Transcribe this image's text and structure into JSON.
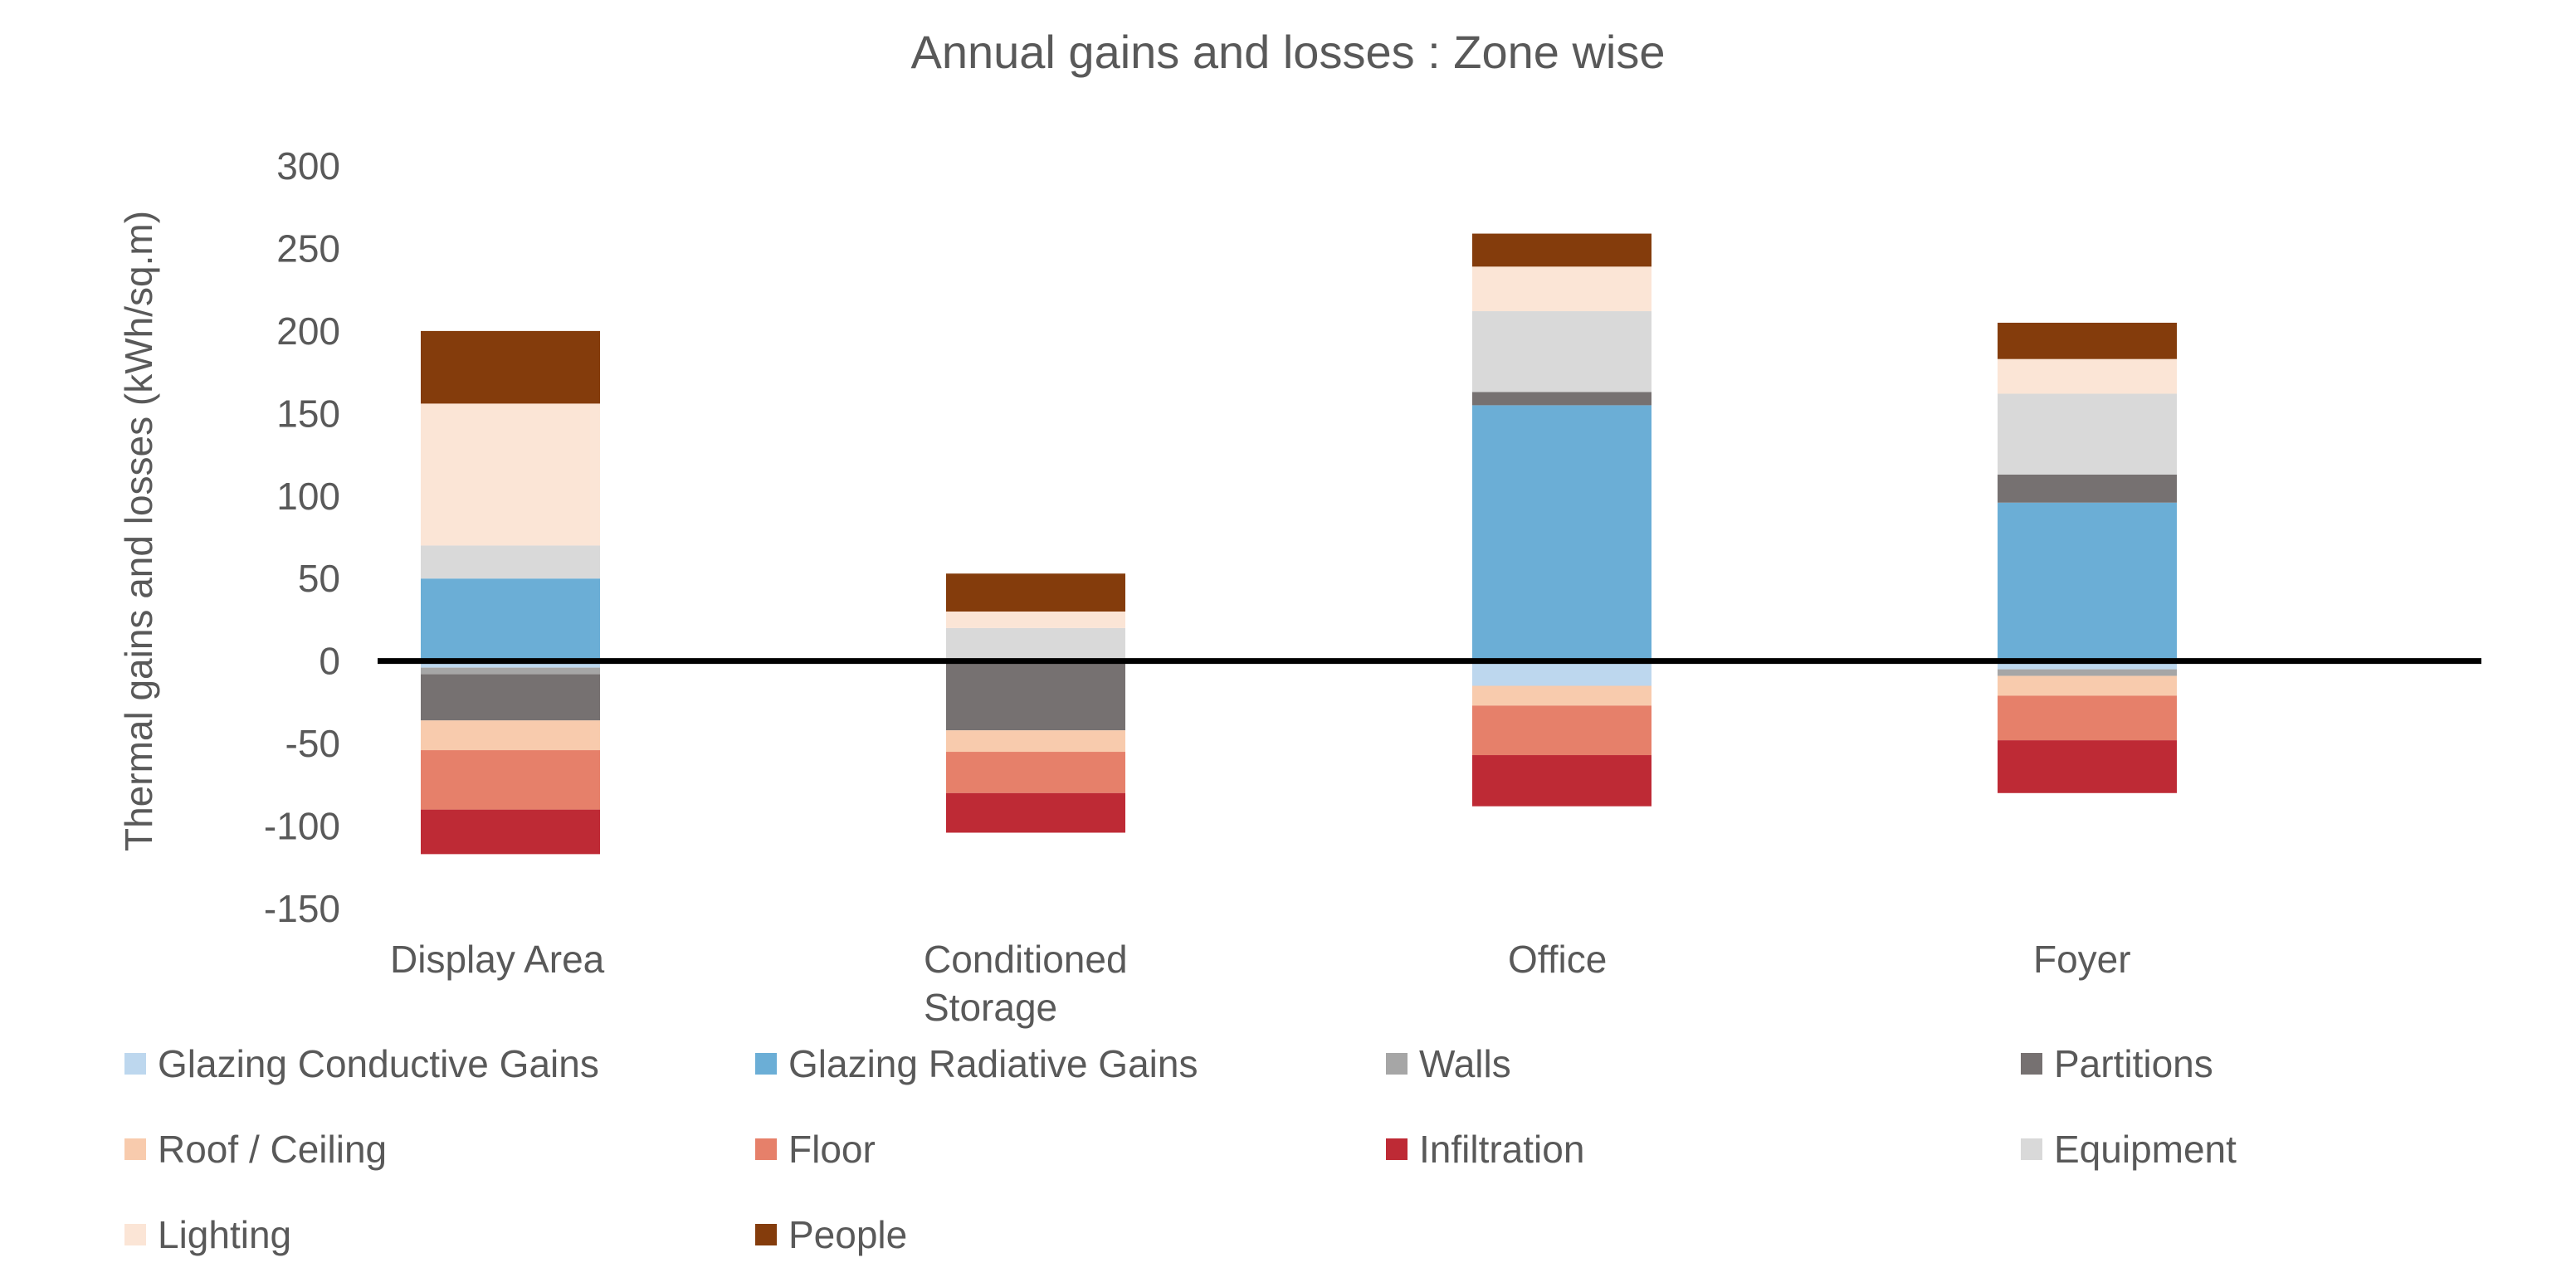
{
  "chart_data": {
    "type": "bar",
    "stacked": true,
    "title": "Annual gains and losses : Zone wise",
    "ylabel": "Thermal gains and losses (kWh/sq.m)",
    "xlabel": "",
    "ylim": [
      -150,
      300
    ],
    "yticks": [
      "300",
      "250",
      "200",
      "150",
      "100",
      "50",
      "0",
      "-50",
      "-100",
      "-150"
    ],
    "grid": false,
    "legend_position": "bottom",
    "categories": [
      "Display Area",
      "Conditioned Storage",
      "Office",
      "Foyer"
    ],
    "category_lines": [
      [
        "Display Area"
      ],
      [
        "Conditioned",
        "Storage"
      ],
      [
        "Office"
      ],
      [
        "Foyer"
      ]
    ],
    "series": [
      {
        "name": "Glazing Conductive Gains",
        "color": "#bdd7ee",
        "values": [
          -4,
          0,
          -15,
          -5
        ]
      },
      {
        "name": "Glazing Radiative Gains",
        "color": "#6baed6",
        "values": [
          50,
          0,
          155,
          96
        ]
      },
      {
        "name": "Walls",
        "color": "#a6a6a6",
        "values": [
          -4,
          0,
          0,
          -4
        ]
      },
      {
        "name": "Partitions",
        "color": "#767171",
        "values": [
          -28,
          -42,
          8,
          17
        ]
      },
      {
        "name": "Roof / Ceiling",
        "color": "#f8cbad",
        "values": [
          -18,
          -13,
          -12,
          -12
        ]
      },
      {
        "name": "Floor",
        "color": "#e6806a",
        "values": [
          -36,
          -25,
          -30,
          -27
        ]
      },
      {
        "name": "Infiltration",
        "color": "#be2a35",
        "values": [
          -27,
          -24,
          -31,
          -32
        ]
      },
      {
        "name": "Equipment",
        "color": "#d9d9d9",
        "values": [
          20,
          20,
          49,
          49
        ]
      },
      {
        "name": "Lighting",
        "color": "#fbe5d6",
        "values": [
          86,
          10,
          27,
          21
        ]
      },
      {
        "name": "People",
        "color": "#843c0c",
        "values": [
          44,
          23,
          20,
          22
        ]
      }
    ],
    "zero_line_color": "#000000"
  }
}
